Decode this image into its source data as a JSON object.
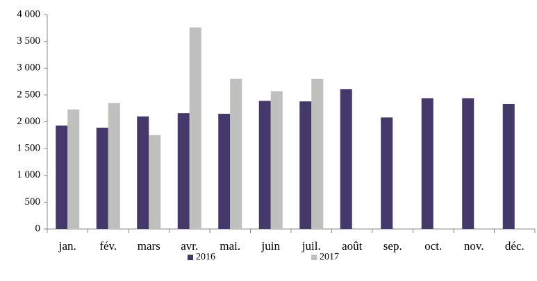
{
  "chart_data": {
    "type": "bar",
    "categories": [
      "jan.",
      "fév.",
      "mars",
      "avr.",
      "mai.",
      "juin",
      "juil.",
      "août",
      "sep.",
      "oct.",
      "nov.",
      "déc."
    ],
    "series": [
      {
        "name": "2016",
        "color": "#45386a",
        "values": [
          1930,
          1890,
          2100,
          2160,
          2150,
          2390,
          2380,
          2610,
          2080,
          2440,
          2440,
          2330
        ]
      },
      {
        "name": "2017",
        "color": "#bfbfbb",
        "values": [
          2230,
          2350,
          1750,
          3760,
          2800,
          2570,
          2800,
          null,
          null,
          null,
          null,
          null
        ]
      }
    ],
    "ylim": [
      0,
      4000
    ],
    "yticks": [
      0,
      500,
      {
        "value": 1000,
        "label": "1 000"
      },
      {
        "value": 1500,
        "label": "1 500"
      },
      {
        "value": 2000,
        "label": "2 000"
      },
      {
        "value": 2500,
        "label": "2 500"
      },
      {
        "value": 3000,
        "label": "3 000"
      },
      {
        "value": 3500,
        "label": "3 500"
      },
      {
        "value": 4000,
        "label": "4 000"
      }
    ],
    "grid": false,
    "legend": "bottom"
  }
}
